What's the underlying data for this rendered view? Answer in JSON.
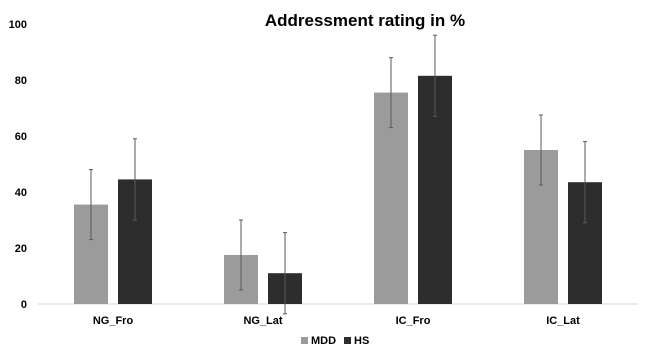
{
  "chart_data": {
    "type": "bar",
    "title": "Addressment rating in %",
    "xlabel": "",
    "ylabel": "",
    "categories": [
      "NG_Fro",
      "NG_Lat",
      "IC_Fro",
      "IC_Lat"
    ],
    "series": [
      {
        "name": "MDD",
        "color": "#9b9b9b",
        "values": [
          35.5,
          17.5,
          75.5,
          55.0
        ],
        "error": [
          12.5,
          12.5,
          12.5,
          12.5
        ]
      },
      {
        "name": "HS",
        "color": "#2d2d2d",
        "values": [
          44.5,
          11.0,
          81.5,
          43.5
        ],
        "error": [
          14.5,
          14.5,
          14.5,
          14.5
        ]
      }
    ],
    "ylim": [
      0,
      100
    ],
    "yticks": [
      "0",
      "20",
      "40",
      "60",
      "80",
      "100"
    ],
    "grid": false,
    "legend_position": "bottom-center"
  }
}
